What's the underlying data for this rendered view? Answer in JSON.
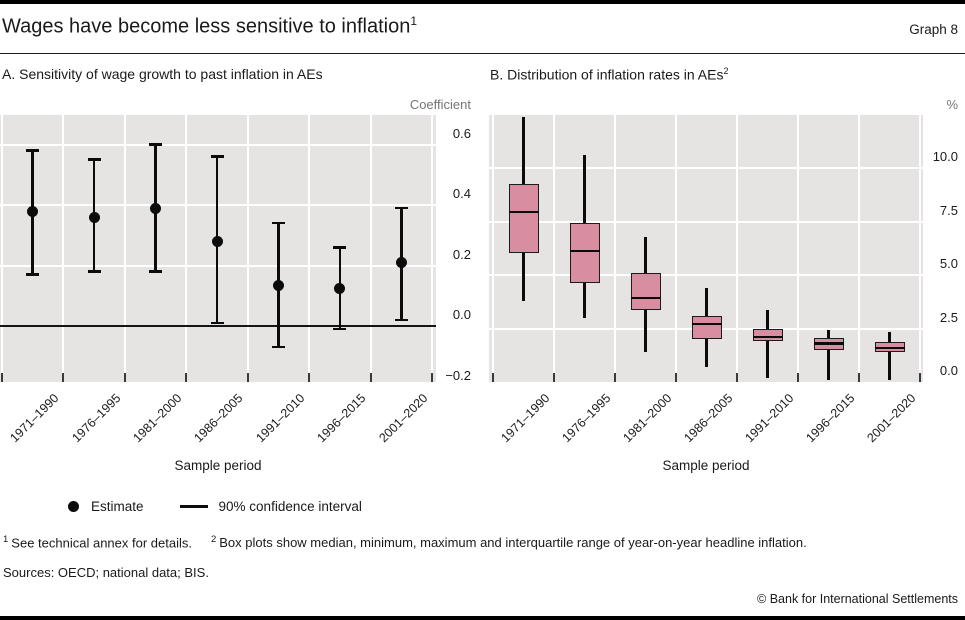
{
  "header": {
    "title": "Wages have become less sensitive to inflation",
    "title_sup": "1",
    "graph_label": "Graph 8"
  },
  "panels": {
    "a": {
      "title": "A. Sensitivity of wage growth to past inflation in AEs",
      "unit_label": "Coefficient",
      "xlabel": "Sample period"
    },
    "b": {
      "title": "B. Distribution of inflation rates in AEs",
      "title_sup": "2",
      "unit_label": "%",
      "xlabel": "Sample period"
    }
  },
  "legend": {
    "estimate": "Estimate",
    "ci": "90% confidence interval"
  },
  "footnotes": {
    "fn1_marker": "1",
    "fn1": "See technical annex for details.",
    "fn2_marker": "2",
    "fn2": "Box plots show median, minimum, maximum and interquartile range of year-on-year headline inflation."
  },
  "sources": "Sources: OECD; national data; BIS.",
  "copyright": "© Bank for International Settlements",
  "colors": {
    "box_fill": "#d98da1",
    "plot_bg": "#e5e4e2",
    "gridline": "#ffffff",
    "ink": "#0b0b0b",
    "unit_gray": "#757575"
  },
  "chart_data": [
    {
      "type": "scatter",
      "title": "A. Sensitivity of wage growth to past inflation in AEs",
      "categories": [
        "1971–1990",
        "1976–1995",
        "1981–2000",
        "1986–2005",
        "1991–2010",
        "1996–2015",
        "2001–2020"
      ],
      "series": [
        {
          "name": "Estimate",
          "values": [
            0.38,
            0.36,
            0.39,
            0.28,
            0.135,
            0.125,
            0.21
          ]
        },
        {
          "name": "90% confidence interval lower",
          "values": [
            0.17,
            0.18,
            0.18,
            0.01,
            -0.07,
            -0.01,
            0.02
          ]
        },
        {
          "name": "90% confidence interval upper",
          "values": [
            0.58,
            0.55,
            0.6,
            0.56,
            0.34,
            0.26,
            0.39
          ]
        }
      ],
      "xlabel": "Sample period",
      "ylabel": "Coefficient",
      "ylim": [
        -0.2,
        0.7
      ],
      "yticks": [
        -0.2,
        0.0,
        0.2,
        0.4,
        0.6
      ],
      "ytick_labels": [
        "−0.2",
        "0.0",
        "0.2",
        "0.4",
        "0.6"
      ],
      "zero_line": true,
      "grid": true,
      "legend_position": "bottom"
    },
    {
      "type": "boxplot",
      "title": "B. Distribution of inflation rates in AEs",
      "categories": [
        "1971–1990",
        "1976–1995",
        "1981–2000",
        "1986–2005",
        "1991–2010",
        "1996–2015",
        "2001–2020"
      ],
      "boxes": [
        {
          "min": 3.8,
          "q1": 6.05,
          "median": 7.95,
          "q3": 9.25,
          "max": 12.4
        },
        {
          "min": 3.0,
          "q1": 4.65,
          "median": 6.15,
          "q3": 7.45,
          "max": 10.65
        },
        {
          "min": 1.4,
          "q1": 3.35,
          "median": 3.95,
          "q3": 5.1,
          "max": 6.8
        },
        {
          "min": 0.7,
          "q1": 2.0,
          "median": 2.7,
          "q3": 3.1,
          "max": 4.4
        },
        {
          "min": 0.2,
          "q1": 1.9,
          "median": 2.1,
          "q3": 2.5,
          "max": 3.35
        },
        {
          "min": 0.1,
          "q1": 1.5,
          "median": 1.8,
          "q3": 2.05,
          "max": 2.45
        },
        {
          "min": 0.1,
          "q1": 1.4,
          "median": 1.6,
          "q3": 1.85,
          "max": 2.35
        }
      ],
      "xlabel": "Sample period",
      "ylabel": "%",
      "ylim": [
        0,
        12.5
      ],
      "yticks": [
        0.0,
        2.5,
        5.0,
        7.5,
        10.0
      ],
      "ytick_labels": [
        "0.0",
        "2.5",
        "5.0",
        "7.5",
        "10.0"
      ],
      "grid": true
    }
  ]
}
